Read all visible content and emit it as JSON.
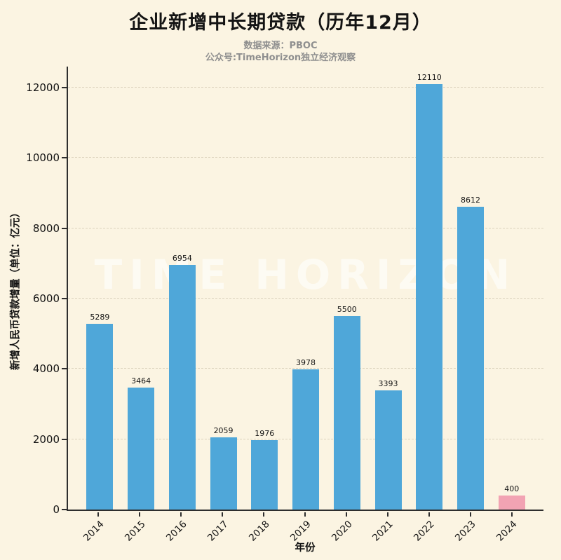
{
  "page": {
    "background": "#FBF4E2"
  },
  "header": {
    "title": "企业新增中长期贷款（历年12月）",
    "subtitle_line1": "数据来源：PBOC",
    "subtitle_line2": "公众号:TimeHorizon独立经济观察"
  },
  "watermark": "TIME HORIZON",
  "chart_data": {
    "type": "bar",
    "title": "企业新增中长期贷款（历年12月）",
    "categories": [
      "2014",
      "2015",
      "2016",
      "2017",
      "2018",
      "2019",
      "2020",
      "2021",
      "2022",
      "2023",
      "2024"
    ],
    "values": [
      5289,
      3464,
      6954,
      2059,
      1976,
      3978,
      5500,
      3393,
      12110,
      8612,
      400
    ],
    "xlabel": "年份",
    "ylabel": "新增人民币贷款增量（单位：亿元）",
    "ylim": [
      0,
      12600
    ],
    "yticks": [
      0,
      2000,
      4000,
      6000,
      8000,
      10000,
      12000
    ],
    "grid": true,
    "legend": "none",
    "value_labels": true,
    "colors": {
      "default": "#4FA7D9",
      "highlight": "#F2A3B3",
      "highlight_category": "2024",
      "axis": "#2e2e2e",
      "text": "#141414",
      "subtitle_text": "#8f8f8f",
      "background": "#FBF4E2"
    }
  }
}
